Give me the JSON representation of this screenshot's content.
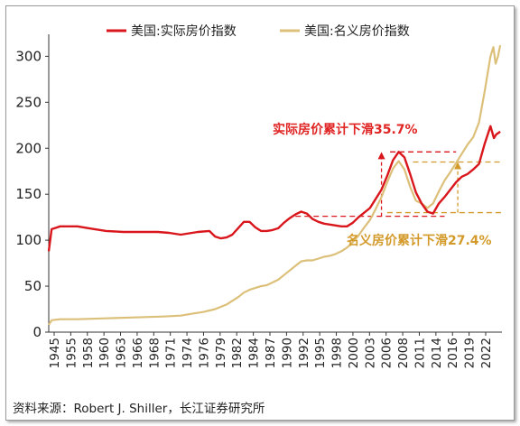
{
  "chart_data": {
    "type": "line",
    "xlim": [
      1945,
      2024
    ],
    "ylim": [
      0,
      320
    ],
    "y_ticks": [
      0,
      50,
      100,
      150,
      200,
      250,
      300
    ],
    "x_ticks": [
      "1945",
      "1955",
      "1958",
      "1960",
      "1963",
      "1966",
      "1968",
      "1971",
      "1974",
      "1976",
      "1979",
      "1982",
      "1984",
      "1987",
      "1990",
      "1992",
      "1995",
      "1998",
      "2000",
      "2003",
      "2006",
      "2008",
      "2011",
      "2014",
      "2016",
      "2019",
      "2022"
    ],
    "legend_position": "top",
    "series": [
      {
        "name": "美国:实际房价指数",
        "color": "#d9161c",
        "points": [
          [
            1945,
            88
          ],
          [
            1945.5,
            112
          ],
          [
            1946,
            113
          ],
          [
            1947,
            115
          ],
          [
            1948,
            115
          ],
          [
            1950,
            115
          ],
          [
            1952,
            113
          ],
          [
            1955,
            110
          ],
          [
            1958,
            109
          ],
          [
            1960,
            109
          ],
          [
            1962,
            109
          ],
          [
            1964,
            109
          ],
          [
            1966,
            108
          ],
          [
            1968,
            106
          ],
          [
            1969,
            107
          ],
          [
            1971,
            109
          ],
          [
            1973,
            110
          ],
          [
            1974,
            104
          ],
          [
            1975,
            102
          ],
          [
            1976,
            103
          ],
          [
            1977,
            106
          ],
          [
            1978,
            113
          ],
          [
            1979,
            120
          ],
          [
            1980,
            120
          ],
          [
            1981,
            114
          ],
          [
            1982,
            110
          ],
          [
            1983,
            110
          ],
          [
            1984,
            111
          ],
          [
            1985,
            113
          ],
          [
            1986,
            119
          ],
          [
            1987,
            124
          ],
          [
            1988,
            128
          ],
          [
            1989,
            131
          ],
          [
            1990,
            129
          ],
          [
            1991,
            123
          ],
          [
            1992,
            120
          ],
          [
            1993,
            118
          ],
          [
            1994,
            117
          ],
          [
            1995,
            116
          ],
          [
            1996,
            115
          ],
          [
            1997,
            115
          ],
          [
            1998,
            119
          ],
          [
            1999,
            125
          ],
          [
            2000,
            130
          ],
          [
            2001,
            135
          ],
          [
            2002,
            145
          ],
          [
            2003,
            155
          ],
          [
            2004,
            170
          ],
          [
            2005,
            187
          ],
          [
            2006,
            196
          ],
          [
            2007,
            190
          ],
          [
            2008,
            172
          ],
          [
            2009,
            152
          ],
          [
            2010,
            140
          ],
          [
            2011,
            131
          ],
          [
            2012,
            129
          ],
          [
            2013,
            140
          ],
          [
            2014,
            147
          ],
          [
            2015,
            155
          ],
          [
            2016,
            163
          ],
          [
            2017,
            169
          ],
          [
            2018,
            172
          ],
          [
            2019,
            177
          ],
          [
            2020,
            183
          ],
          [
            2021,
            205
          ],
          [
            2022,
            224
          ],
          [
            2022.6,
            211
          ],
          [
            2023,
            215
          ],
          [
            2023.7,
            218
          ]
        ]
      },
      {
        "name": "美国:名义房价指数",
        "color": "#dcc07a",
        "points": [
          [
            1945,
            8
          ],
          [
            1945.5,
            13
          ],
          [
            1947,
            14
          ],
          [
            1950,
            14
          ],
          [
            1955,
            15
          ],
          [
            1960,
            16
          ],
          [
            1965,
            17
          ],
          [
            1968,
            18
          ],
          [
            1970,
            20
          ],
          [
            1972,
            22
          ],
          [
            1974,
            25
          ],
          [
            1976,
            30
          ],
          [
            1978,
            38
          ],
          [
            1979,
            43
          ],
          [
            1980,
            46
          ],
          [
            1982,
            50
          ],
          [
            1983,
            51
          ],
          [
            1984,
            54
          ],
          [
            1985,
            57
          ],
          [
            1986,
            62
          ],
          [
            1987,
            67
          ],
          [
            1988,
            72
          ],
          [
            1989,
            77
          ],
          [
            1990,
            78
          ],
          [
            1991,
            78
          ],
          [
            1992,
            80
          ],
          [
            1993,
            82
          ],
          [
            1994,
            83
          ],
          [
            1995,
            85
          ],
          [
            1996,
            88
          ],
          [
            1997,
            92
          ],
          [
            1998,
            98
          ],
          [
            1999,
            105
          ],
          [
            2000,
            114
          ],
          [
            2001,
            122
          ],
          [
            2002,
            134
          ],
          [
            2003,
            147
          ],
          [
            2004,
            163
          ],
          [
            2005,
            178
          ],
          [
            2006,
            186
          ],
          [
            2007,
            177
          ],
          [
            2008,
            158
          ],
          [
            2009,
            143
          ],
          [
            2010,
            140
          ],
          [
            2011,
            135
          ],
          [
            2012,
            140
          ],
          [
            2013,
            153
          ],
          [
            2014,
            165
          ],
          [
            2015,
            174
          ],
          [
            2016,
            184
          ],
          [
            2017,
            194
          ],
          [
            2018,
            204
          ],
          [
            2019,
            212
          ],
          [
            2020,
            228
          ],
          [
            2021,
            262
          ],
          [
            2022,
            300
          ],
          [
            2022.5,
            310
          ],
          [
            2022.9,
            292
          ],
          [
            2023.3,
            300
          ],
          [
            2023.7,
            312
          ]
        ]
      }
    ],
    "annotations": [
      {
        "text": "实际房价累计下滑35.7%"
      },
      {
        "text": "名义房价累计下滑27.4%"
      }
    ]
  },
  "source": "资料来源：Robert J. Shiller，长江证券研究所"
}
